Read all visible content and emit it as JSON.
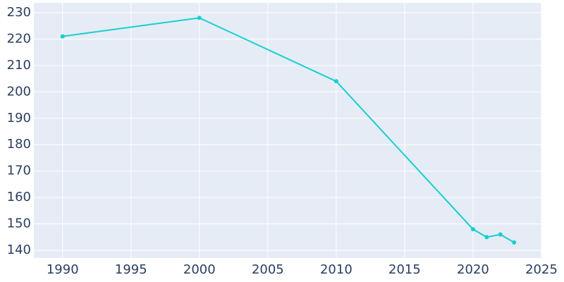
{
  "chart_data": {
    "type": "line",
    "x": [
      1990,
      2000,
      2010,
      2020,
      2021,
      2022,
      2023
    ],
    "series": [
      {
        "color": "#17cfcf",
        "values": [
          221,
          228,
          204,
          148,
          145,
          146,
          143
        ]
      }
    ],
    "xlim": [
      1987.9,
      2025
    ],
    "xticks": [
      1990,
      1995,
      2000,
      2005,
      2010,
      2015,
      2020,
      2025
    ],
    "ylim": [
      137.1,
      233.7
    ],
    "yticks": [
      140,
      150,
      160,
      170,
      180,
      190,
      200,
      210,
      220,
      230
    ],
    "grid": true
  }
}
